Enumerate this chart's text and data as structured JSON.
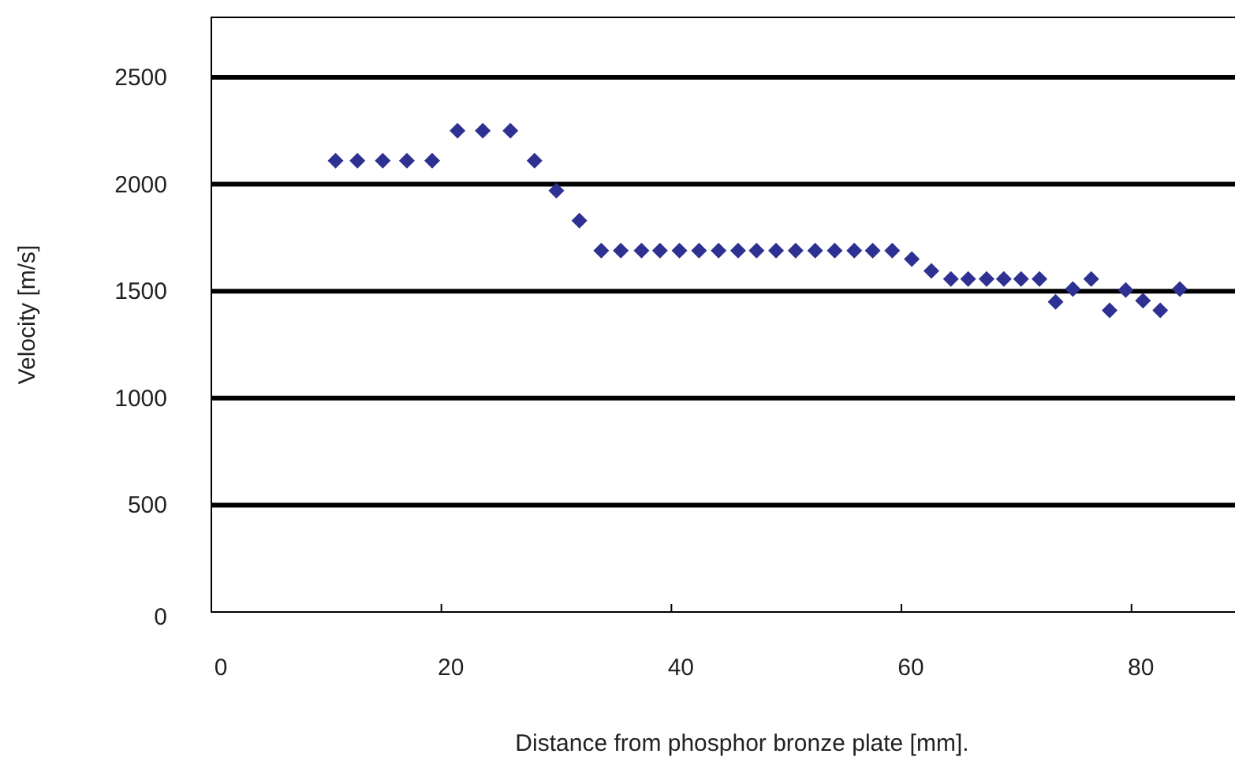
{
  "chart_data": {
    "type": "scatter",
    "xlabel": "Distance from phosphor bronze plate [mm].",
    "ylabel": "Velocity [m/s]",
    "xlim": [
      0,
      89
    ],
    "xticks": [
      0,
      20,
      40,
      60,
      80
    ],
    "ylim": [
      0,
      2780
    ],
    "yticks": [
      0,
      500,
      1000,
      1500,
      2000,
      2500
    ],
    "grid": "y",
    "marker": "diamond",
    "series": [
      {
        "color": "#2e3192",
        "x": [
          10.8,
          12.7,
          14.9,
          17.0,
          19.2,
          21.4,
          23.6,
          26.0,
          28.1,
          30.0,
          32.0,
          33.9,
          35.6,
          37.4,
          39.0,
          40.7,
          42.4,
          44.1,
          45.8,
          47.4,
          49.1,
          50.8,
          52.5,
          54.2,
          55.9,
          57.5,
          59.2,
          60.9,
          62.6,
          64.3,
          65.8,
          67.4,
          68.9,
          70.4,
          72.0,
          73.4,
          74.9,
          76.5,
          78.1,
          79.5,
          81.0,
          82.5,
          84.2
        ],
        "values": [
          2110,
          2110,
          2110,
          2110,
          2110,
          2250,
          2250,
          2250,
          2110,
          1970,
          1830,
          1690,
          1690,
          1690,
          1690,
          1690,
          1690,
          1690,
          1690,
          1690,
          1690,
          1690,
          1690,
          1690,
          1690,
          1690,
          1690,
          1650,
          1595,
          1557,
          1557,
          1557,
          1557,
          1557,
          1557,
          1450,
          1510,
          1557,
          1410,
          1505,
          1455,
          1410,
          1510
        ]
      }
    ]
  }
}
